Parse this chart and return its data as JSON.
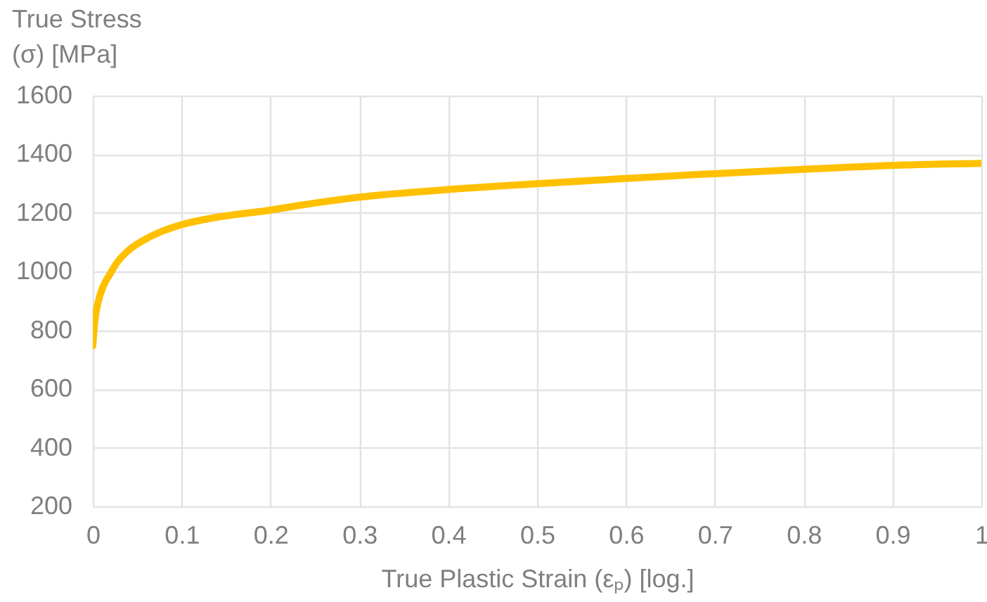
{
  "chart_data": {
    "type": "line",
    "xlabel": "True Plastic Strain (εₚ) [log.]",
    "ylabel": "True Stress\n(σ) [MPa]",
    "x": [
      0,
      0.002,
      0.006,
      0.012,
      0.02,
      0.027,
      0.04,
      0.06,
      0.08,
      0.1,
      0.133,
      0.2,
      0.25,
      0.3,
      0.4,
      0.5,
      0.6,
      0.7,
      0.8,
      0.9,
      1
    ],
    "series": [
      {
        "color": "#ffc000",
        "values": [
          747,
          824,
          896,
          952,
          995,
          1030,
          1072,
          1112,
          1140,
          1160,
          1182,
          1210,
          1234,
          1254,
          1280,
          1300,
          1318,
          1334,
          1349,
          1362,
          1369
        ]
      }
    ],
    "xlim": [
      0,
      1
    ],
    "ylim": [
      200,
      1600
    ],
    "xticks": [
      0,
      0.1,
      0.2,
      0.3,
      0.4,
      0.5,
      0.6,
      0.7,
      0.8,
      0.9,
      1
    ],
    "yticks": [
      200,
      400,
      600,
      800,
      1000,
      1200,
      1400,
      1600
    ],
    "grid": true,
    "line_style": "solid"
  }
}
